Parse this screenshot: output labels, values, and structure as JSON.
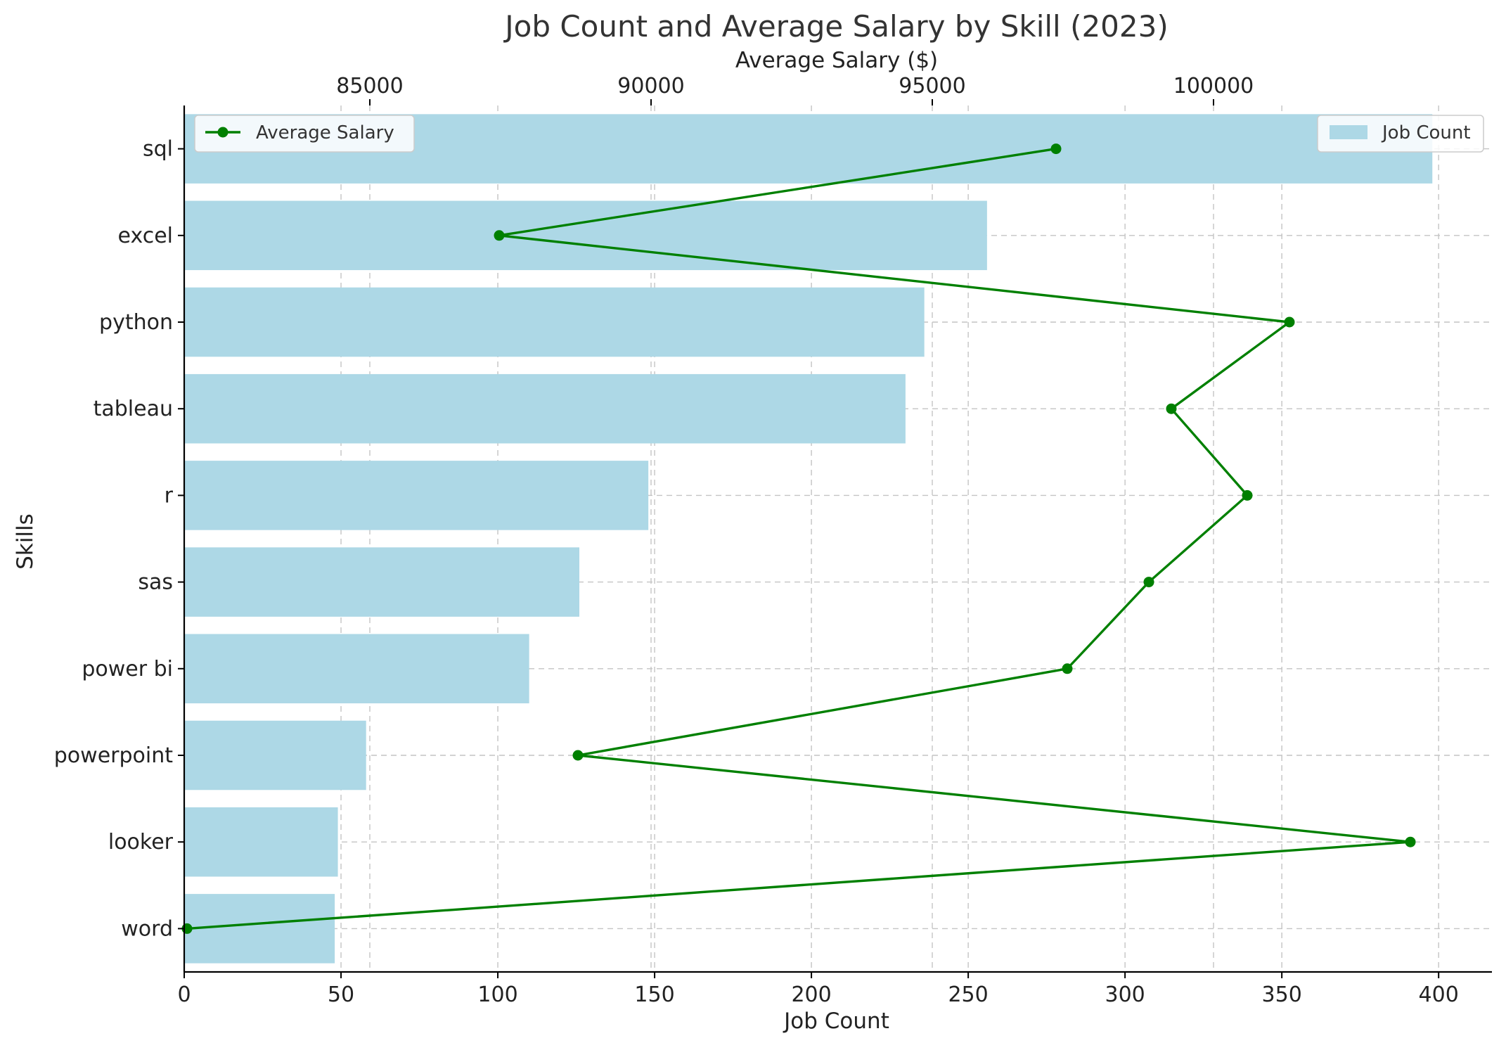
{
  "chart_data": {
    "type": "bar",
    "title": "Job Count and Average Salary by Skill (2023)",
    "categories": [
      "sql",
      "excel",
      "python",
      "tableau",
      "r",
      "sas",
      "power bi",
      "powerpoint",
      "looker",
      "word"
    ],
    "series": [
      {
        "name": "Job Count",
        "type": "bar",
        "orientation": "horizontal",
        "axis": "bottom",
        "color": "#add8e6",
        "values": [
          398,
          256,
          236,
          230,
          148,
          126,
          110,
          58,
          49,
          48
        ]
      },
      {
        "name": "Average Salary",
        "type": "line",
        "axis": "top",
        "color": "#008000",
        "marker": "circle",
        "values": [
          97200,
          87300,
          101350,
          99250,
          100600,
          98850,
          97400,
          88700,
          103500,
          81750
        ]
      }
    ],
    "xlabel": "Job Count",
    "xlim": [
      0,
      417
    ],
    "xticks": [
      0,
      50,
      100,
      150,
      200,
      250,
      300,
      350,
      400
    ],
    "x2label": "Average Salary ($)",
    "x2lim": [
      81700,
      104950
    ],
    "x2ticks": [
      85000,
      90000,
      95000,
      100000
    ],
    "ylabel": "Skills",
    "grid": true,
    "legends": [
      {
        "position": "top-left",
        "entries": [
          "Average Salary"
        ]
      },
      {
        "position": "top-right",
        "entries": [
          "Job Count"
        ]
      }
    ]
  }
}
